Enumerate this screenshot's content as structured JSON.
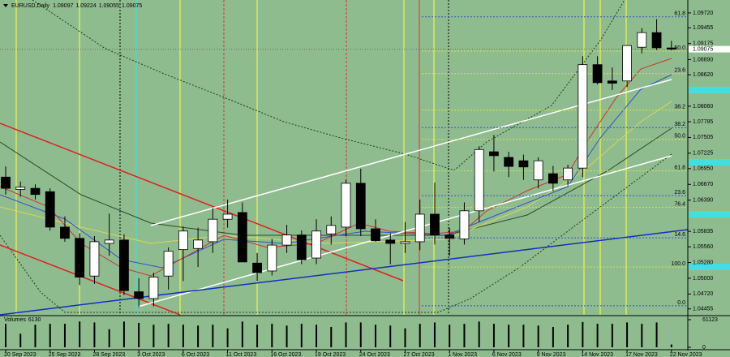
{
  "chart_data": {
    "type": "candlestick",
    "title": "EURUSD,Daily",
    "categories": [
      "20 Sep 2023",
      null,
      null,
      "25 Sep 2023",
      null,
      null,
      "28 Sep 2023",
      null,
      null,
      "3 Oct 2023",
      null,
      null,
      "6 Oct 2023",
      null,
      null,
      "11 Oct 2023",
      null,
      null,
      "16 Oct 2023",
      null,
      null,
      "19 Oct 2023",
      null,
      null,
      "24 Oct 2023",
      null,
      null,
      "27 Oct 2023",
      null,
      null,
      "1 Nov 2023",
      null,
      null,
      "6 Nov 2023",
      null,
      null,
      "9 Nov 2023",
      null,
      null,
      "14 Nov 2023",
      null,
      null,
      "17 Nov 2023",
      null,
      null,
      "22 Nov 2023"
    ],
    "open": [
      1.068,
      1.0658,
      1.066,
      1.0654,
      1.0591,
      1.0571,
      1.0504,
      1.0562,
      1.0568,
      1.0476,
      1.0464,
      1.0504,
      1.0551,
      1.0553,
      1.0565,
      1.0605,
      1.0617,
      1.0527,
      1.0513,
      1.0559,
      1.0577,
      1.0536,
      1.0579,
      1.0591,
      1.0669,
      1.0588,
      1.0568,
      1.0562,
      1.0565,
      1.0614,
      1.0577,
      1.057,
      1.062,
      1.0725,
      1.0715,
      1.0709,
      1.0675,
      1.0686,
      1.0675,
      1.0696,
      1.088,
      1.0851,
      1.0851,
      1.0911,
      1.0937,
      1.09097
    ],
    "high": [
      1.0699,
      1.0672,
      1.0667,
      1.066,
      1.061,
      1.058,
      1.0575,
      1.0615,
      1.0578,
      1.05,
      1.051,
      1.0555,
      1.0592,
      1.059,
      1.0625,
      1.064,
      1.0635,
      1.0545,
      1.057,
      1.0595,
      1.0585,
      1.0605,
      1.061,
      1.0675,
      1.0695,
      1.0605,
      1.058,
      1.06,
      1.064,
      1.067,
      1.059,
      1.0635,
      1.0735,
      1.0755,
      1.0725,
      1.072,
      1.0715,
      1.07,
      1.0702,
      1.0895,
      1.0895,
      1.0875,
      1.0915,
      1.0945,
      1.0961,
      1.09224
    ],
    "low": [
      1.0649,
      1.0645,
      1.064,
      1.0585,
      1.0565,
      1.0488,
      1.049,
      1.054,
      1.047,
      1.0448,
      1.045,
      1.048,
      1.0495,
      1.052,
      1.0545,
      1.059,
      1.053,
      1.0495,
      1.0505,
      1.0545,
      1.0525,
      1.0525,
      1.056,
      1.0575,
      1.0575,
      1.0565,
      1.0525,
      1.0545,
      1.055,
      1.056,
      1.054,
      1.056,
      1.06,
      1.069,
      1.068,
      1.0675,
      1.066,
      1.0655,
      1.0665,
      1.068,
      1.0845,
      1.0835,
      1.084,
      1.09,
      1.0906,
      1.09055
    ],
    "close": [
      1.066,
      1.0662,
      1.0649,
      1.0591,
      1.0571,
      1.0502,
      1.0565,
      1.0568,
      1.0478,
      1.0464,
      1.0502,
      1.0548,
      1.0584,
      1.0568,
      1.0605,
      1.0614,
      1.0529,
      1.051,
      1.0559,
      1.0577,
      1.0533,
      1.0584,
      1.0594,
      1.0669,
      1.0588,
      1.0567,
      1.0562,
      1.0565,
      1.0614,
      1.0577,
      1.0571,
      1.062,
      1.0729,
      1.0718,
      1.0699,
      1.0698,
      1.0709,
      1.0669,
      1.0696,
      1.088,
      1.0848,
      1.0847,
      1.0914,
      1.0937,
      1.091,
      1.09075
    ],
    "up_color": "#ffffff",
    "down_color": "#000000",
    "ylim": [
      1.0435,
      1.0995
    ],
    "yticks": [
      {
        "value": 1.0972,
        "label": "1.09720"
      },
      1.09455,
      1.09175,
      {
        "value": 1.0889,
        "label": "1.08890"
      },
      {
        "value": 1.0862,
        "label": "1.08620"
      },
      {
        "value": 1.0806,
        "label": "1.08060"
      },
      1.07785,
      1.07505,
      1.07225,
      {
        "value": 1.0695,
        "label": "1.06950"
      },
      {
        "value": 1.0667,
        "label": "1.06670"
      },
      {
        "value": 1.0639,
        "label": "1.06390"
      },
      1.05835,
      {
        "value": 1.0556,
        "label": "1.05560"
      },
      {
        "value": 1.0528,
        "label": "1.05280"
      },
      {
        "value": 1.05,
        "label": "1.05000"
      },
      {
        "value": 1.0472,
        "label": "1.04720"
      },
      1.04455
    ],
    "fib_levels": [
      {
        "label": "61.8",
        "value": 1.0965,
        "color": "#3050d0"
      },
      {
        "label": "50.0",
        "value": 1.0904,
        "color": "#e0e040"
      },
      {
        "label": "23.6",
        "value": 1.0864,
        "color": "#e0e040"
      },
      {
        "label": "38.2",
        "value": 1.0799,
        "color": "#e0e040"
      },
      {
        "label": "38.2",
        "value": 1.0768,
        "color": "#3050d0"
      },
      {
        "label": "50.0",
        "value": 1.0747,
        "color": "#e0e040"
      },
      {
        "label": "61.8",
        "value": 1.0691,
        "color": "#e0e040"
      },
      {
        "label": "23.6",
        "value": 1.0647,
        "color": "#3050d0"
      },
      {
        "label": "76.4",
        "value": 1.0626,
        "color": "#e0e040"
      },
      {
        "label": "14.6",
        "value": 1.0572,
        "color": "#3050d0"
      },
      {
        "label": "100.0",
        "value": 1.052,
        "color": "#e0e040"
      },
      {
        "label": "0.0",
        "value": 1.0451,
        "color": "#3050d0"
      }
    ],
    "volume": {
      "name": "Volumes",
      "color": "#000000",
      "values": [
        52000,
        30000,
        50000,
        52000,
        52000,
        57000,
        55000,
        40000,
        57000,
        54000,
        50000,
        52000,
        50000,
        48000,
        50000,
        42000,
        57000,
        50000,
        52000,
        48000,
        52000,
        50000,
        45000,
        55000,
        55000,
        50000,
        48000,
        42000,
        52000,
        55000,
        50000,
        52000,
        57000,
        52000,
        50000,
        50000,
        48000,
        45000,
        50000,
        56000,
        52000,
        52000,
        55000,
        52000,
        55000,
        6130
      ],
      "ylim": [
        0,
        61123
      ],
      "yticks": [
        61123,
        0
      ]
    }
  }
}
